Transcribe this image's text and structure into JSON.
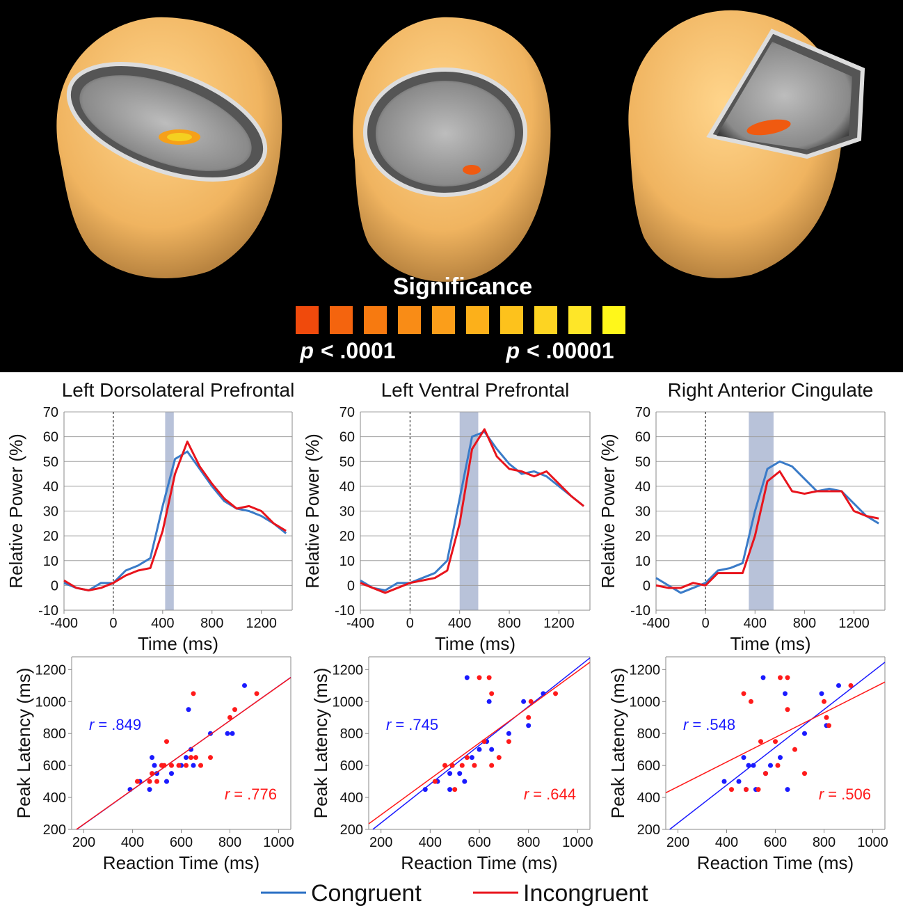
{
  "figure": {
    "significance": {
      "title": "Significance",
      "colors": [
        "#f04a0c",
        "#f4640e",
        "#f77a10",
        "#f98c16",
        "#fb9e1a",
        "#fcb01a",
        "#fdc21c",
        "#fdd422",
        "#fee628",
        "#fff71a"
      ],
      "low": {
        "symbol": "p",
        "text": "< .0001"
      },
      "high": {
        "symbol": "p",
        "text": "< .00001"
      }
    }
  },
  "legend": [
    {
      "name": "Congruent",
      "color": "#2a6fc4"
    },
    {
      "name": "Incongruent",
      "color": "#e8141c"
    }
  ],
  "chart_data": [
    {
      "type": "line",
      "title": "Left Dorsolateral Prefrontal",
      "xlabel": "Time (ms)",
      "ylabel": "Relative Power (%)",
      "x": [
        -400,
        -300,
        -200,
        -100,
        0,
        100,
        200,
        300,
        400,
        500,
        600,
        700,
        800,
        900,
        1000,
        1100,
        1200,
        1300,
        1400
      ],
      "xlim": [
        -400,
        1450
      ],
      "ylim": [
        -10,
        70
      ],
      "xticks": [
        -400,
        0,
        400,
        800,
        1200
      ],
      "yticks": [
        -10,
        0,
        10,
        20,
        30,
        40,
        50,
        60,
        70
      ],
      "grid": true,
      "highlight": [
        420,
        490
      ],
      "highlight_color": "#b8c2d9",
      "vline": 0,
      "series": [
        {
          "color": "#3a7bc8",
          "values": [
            1,
            -1,
            -2,
            1,
            1,
            6,
            8,
            11,
            32,
            51,
            54,
            47,
            40,
            34,
            31,
            30,
            28,
            25,
            21
          ]
        },
        {
          "color": "#e8141c",
          "values": [
            2,
            -1,
            -2,
            -1,
            1,
            4,
            6,
            7,
            22,
            45,
            58,
            48,
            41,
            35,
            31,
            32,
            30,
            25,
            22
          ]
        }
      ]
    },
    {
      "type": "line",
      "title": "Left Ventral Prefrontal",
      "xlabel": "Time (ms)",
      "ylabel": "Relative Power (%)",
      "x": [
        -400,
        -300,
        -200,
        -100,
        0,
        100,
        200,
        300,
        400,
        500,
        600,
        700,
        800,
        900,
        1000,
        1100,
        1200,
        1300,
        1400
      ],
      "xlim": [
        -400,
        1450
      ],
      "ylim": [
        -10,
        70
      ],
      "xticks": [
        -400,
        0,
        400,
        800,
        1200
      ],
      "yticks": [
        -10,
        0,
        10,
        20,
        30,
        40,
        50,
        60,
        70
      ],
      "grid": true,
      "highlight": [
        400,
        550
      ],
      "highlight_color": "#b8c2d9",
      "vline": 0,
      "series": [
        {
          "color": "#3a7bc8",
          "values": [
            2,
            -1,
            -2,
            1,
            1,
            3,
            5,
            10,
            35,
            60,
            62,
            55,
            49,
            45,
            46,
            44,
            40,
            36,
            32
          ]
        },
        {
          "color": "#e8141c",
          "values": [
            1,
            -1,
            -3,
            -1,
            1,
            2,
            3,
            6,
            25,
            55,
            63,
            52,
            47,
            46,
            44,
            46,
            41,
            36,
            32
          ]
        }
      ]
    },
    {
      "type": "line",
      "title": "Right Anterior Cingulate",
      "xlabel": "Time (ms)",
      "ylabel": "Relative Power (%)",
      "x": [
        -400,
        -300,
        -200,
        -100,
        0,
        100,
        200,
        300,
        400,
        500,
        600,
        700,
        800,
        900,
        1000,
        1100,
        1200,
        1300,
        1400
      ],
      "xlim": [
        -400,
        1450
      ],
      "ylim": [
        -10,
        70
      ],
      "xticks": [
        -400,
        0,
        400,
        800,
        1200
      ],
      "yticks": [
        -10,
        0,
        10,
        20,
        30,
        40,
        50,
        60,
        70
      ],
      "grid": true,
      "highlight": [
        350,
        550
      ],
      "highlight_color": "#b8c2d9",
      "vline": 0,
      "series": [
        {
          "color": "#3a7bc8",
          "values": [
            3,
            0,
            -3,
            -1,
            1,
            6,
            7,
            9,
            30,
            47,
            50,
            48,
            43,
            38,
            39,
            38,
            33,
            28,
            25
          ]
        },
        {
          "color": "#e8141c",
          "values": [
            0,
            -1,
            -1,
            1,
            0,
            5,
            5,
            5,
            20,
            42,
            46,
            38,
            37,
            38,
            38,
            38,
            30,
            28,
            27
          ]
        }
      ]
    },
    {
      "type": "scatter",
      "xlabel": "Reaction Time (ms)",
      "ylabel": "Peak Latency (ms)",
      "xlim": [
        150,
        1050
      ],
      "ylim": [
        200,
        1280
      ],
      "xticks": [
        200,
        400,
        600,
        800,
        1000
      ],
      "yticks": [
        200,
        400,
        600,
        800,
        1000,
        1200
      ],
      "series": [
        {
          "color": "#1a1aff",
          "x": [
            390,
            430,
            470,
            480,
            490,
            500,
            520,
            540,
            560,
            600,
            620,
            630,
            640,
            650,
            720,
            790,
            810,
            860
          ],
          "values": [
            450,
            500,
            450,
            650,
            600,
            550,
            600,
            500,
            550,
            600,
            650,
            950,
            700,
            600,
            800,
            800,
            800,
            1100
          ]
        },
        {
          "color": "#ff1a1a",
          "x": [
            420,
            470,
            480,
            500,
            520,
            530,
            540,
            560,
            590,
            620,
            650,
            660,
            680,
            720,
            800,
            820,
            910,
            640
          ],
          "values": [
            500,
            500,
            550,
            500,
            600,
            600,
            750,
            600,
            600,
            600,
            1050,
            650,
            600,
            650,
            900,
            950,
            1050,
            650
          ]
        }
      ],
      "annotations": [
        {
          "symbol": "r",
          "text": "= .849",
          "color": "#1a1aff"
        },
        {
          "symbol": "r",
          "text": "= .776",
          "color": "#ff1a1a"
        }
      ]
    },
    {
      "type": "scatter",
      "xlabel": "Reaction Time (ms)",
      "ylabel": "Peak Latency (ms)",
      "xlim": [
        150,
        1050
      ],
      "ylim": [
        200,
        1280
      ],
      "xticks": [
        200,
        400,
        600,
        800,
        1000
      ],
      "yticks": [
        200,
        400,
        600,
        800,
        1000,
        1200
      ],
      "series": [
        {
          "color": "#1a1aff",
          "x": [
            380,
            430,
            480,
            490,
            520,
            540,
            550,
            570,
            600,
            630,
            640,
            650,
            720,
            780,
            800,
            860,
            480
          ],
          "values": [
            450,
            500,
            550,
            600,
            550,
            500,
            1150,
            650,
            700,
            750,
            1000,
            700,
            800,
            1000,
            850,
            1050,
            450
          ]
        },
        {
          "color": "#ff1a1a",
          "x": [
            420,
            460,
            490,
            500,
            530,
            550,
            580,
            600,
            620,
            640,
            650,
            680,
            720,
            810,
            800,
            910,
            650
          ],
          "values": [
            500,
            600,
            600,
            450,
            600,
            650,
            600,
            1150,
            750,
            1150,
            1050,
            650,
            750,
            1000,
            900,
            1050,
            600
          ]
        }
      ],
      "annotations": [
        {
          "symbol": "r",
          "text": "= .745",
          "color": "#1a1aff"
        },
        {
          "symbol": "r",
          "text": "= .644",
          "color": "#ff1a1a"
        }
      ]
    },
    {
      "type": "scatter",
      "xlabel": "Reaction Time (ms)",
      "ylabel": "Peak Latency (ms)",
      "xlim": [
        150,
        1050
      ],
      "ylim": [
        200,
        1280
      ],
      "xticks": [
        200,
        400,
        600,
        800,
        1000
      ],
      "yticks": [
        200,
        400,
        600,
        800,
        1000,
        1200
      ],
      "series": [
        {
          "color": "#1a1aff",
          "x": [
            390,
            450,
            470,
            480,
            490,
            510,
            520,
            550,
            560,
            580,
            620,
            640,
            650,
            720,
            790,
            810,
            860
          ],
          "values": [
            500,
            500,
            650,
            450,
            600,
            600,
            450,
            1150,
            550,
            600,
            650,
            1050,
            450,
            800,
            1050,
            850,
            1100
          ]
        },
        {
          "color": "#ff1a1a",
          "x": [
            420,
            470,
            500,
            540,
            560,
            600,
            610,
            620,
            650,
            650,
            680,
            720,
            800,
            810,
            820,
            910,
            480,
            530
          ],
          "values": [
            450,
            1050,
            1000,
            750,
            550,
            750,
            600,
            1150,
            1150,
            950,
            700,
            550,
            1000,
            900,
            850,
            1100,
            450,
            450
          ]
        }
      ],
      "annotations": [
        {
          "symbol": "r",
          "text": "= .548",
          "color": "#1a1aff"
        },
        {
          "symbol": "r",
          "text": "= .506",
          "color": "#ff1a1a"
        }
      ]
    }
  ]
}
